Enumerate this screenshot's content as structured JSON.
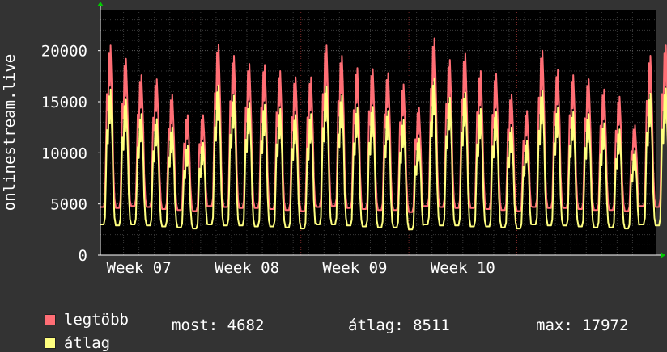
{
  "chart_data": {
    "type": "line",
    "ylabel": "onlinestream.live",
    "ylim": [
      0,
      24000
    ],
    "yticks": [
      0,
      5000,
      10000,
      15000,
      20000
    ],
    "ytick_labels": [
      "0",
      "5000",
      "10000",
      "15000",
      "20000"
    ],
    "xlim": [
      0,
      36
    ],
    "xticks": [
      {
        "label": "Week 07",
        "pos": 2.5
      },
      {
        "label": "Week 08",
        "pos": 9.5
      },
      {
        "label": "Week 09",
        "pos": 16.5
      },
      {
        "label": "Week 10",
        "pos": 23.5
      }
    ],
    "week_boundaries": [
      6,
      13,
      20,
      27
    ],
    "grid": true,
    "series": [
      {
        "name": "legtöbb",
        "color": "#ff6e75",
        "daily_peak": [
          20500,
          19200,
          17600,
          17200,
          15700,
          13700,
          13700,
          20600,
          19500,
          18700,
          18600,
          18000,
          17400,
          17400,
          20500,
          19500,
          18300,
          18200,
          17800,
          16700,
          14400,
          21200,
          19100,
          19700,
          18000,
          17700,
          15700,
          14100,
          20000,
          18100,
          17600,
          17200,
          16200,
          15500,
          12700,
          19500,
          20500
        ],
        "daily_low": [
          4700,
          4600,
          4800,
          4700,
          4500,
          4400,
          4300,
          4800,
          4700,
          4600,
          4600,
          4500,
          4400,
          4300,
          4700,
          4800,
          4600,
          4500,
          4400,
          4400,
          4200,
          4800,
          4700,
          4600,
          4600,
          4500,
          4400,
          4300,
          4700,
          4600,
          4600,
          4500,
          4400,
          4400,
          4300,
          4800,
          4700
        ]
      },
      {
        "name": "átlag",
        "color": "#ffff80",
        "daily_peak": [
          16200,
          15200,
          13800,
          13300,
          12500,
          10700,
          11000,
          16600,
          15600,
          14900,
          14700,
          14300,
          13700,
          13800,
          16500,
          15600,
          14400,
          14500,
          14100,
          13200,
          11400,
          17300,
          15400,
          15900,
          14300,
          14000,
          12500,
          11200,
          16100,
          14400,
          14000,
          13800,
          12900,
          12300,
          10200,
          15800,
          16300
        ],
        "daily_low": [
          3000,
          2900,
          3000,
          2900,
          2800,
          2700,
          2600,
          3000,
          2900,
          2900,
          2800,
          2800,
          2700,
          2600,
          3000,
          3000,
          2900,
          2800,
          2700,
          2700,
          2500,
          3000,
          2900,
          2900,
          2800,
          2800,
          2700,
          2600,
          3000,
          2900,
          2900,
          2800,
          2700,
          2700,
          2600,
          3000,
          2900
        ]
      }
    ]
  },
  "legend": {
    "max_label": "legtöbb",
    "avg_label": "átlag",
    "max_color": "#ff6e75",
    "avg_color": "#ffff80"
  },
  "stats": {
    "now": "most: 4682",
    "avg": "átlag: 8511",
    "max": "max: 17972"
  }
}
